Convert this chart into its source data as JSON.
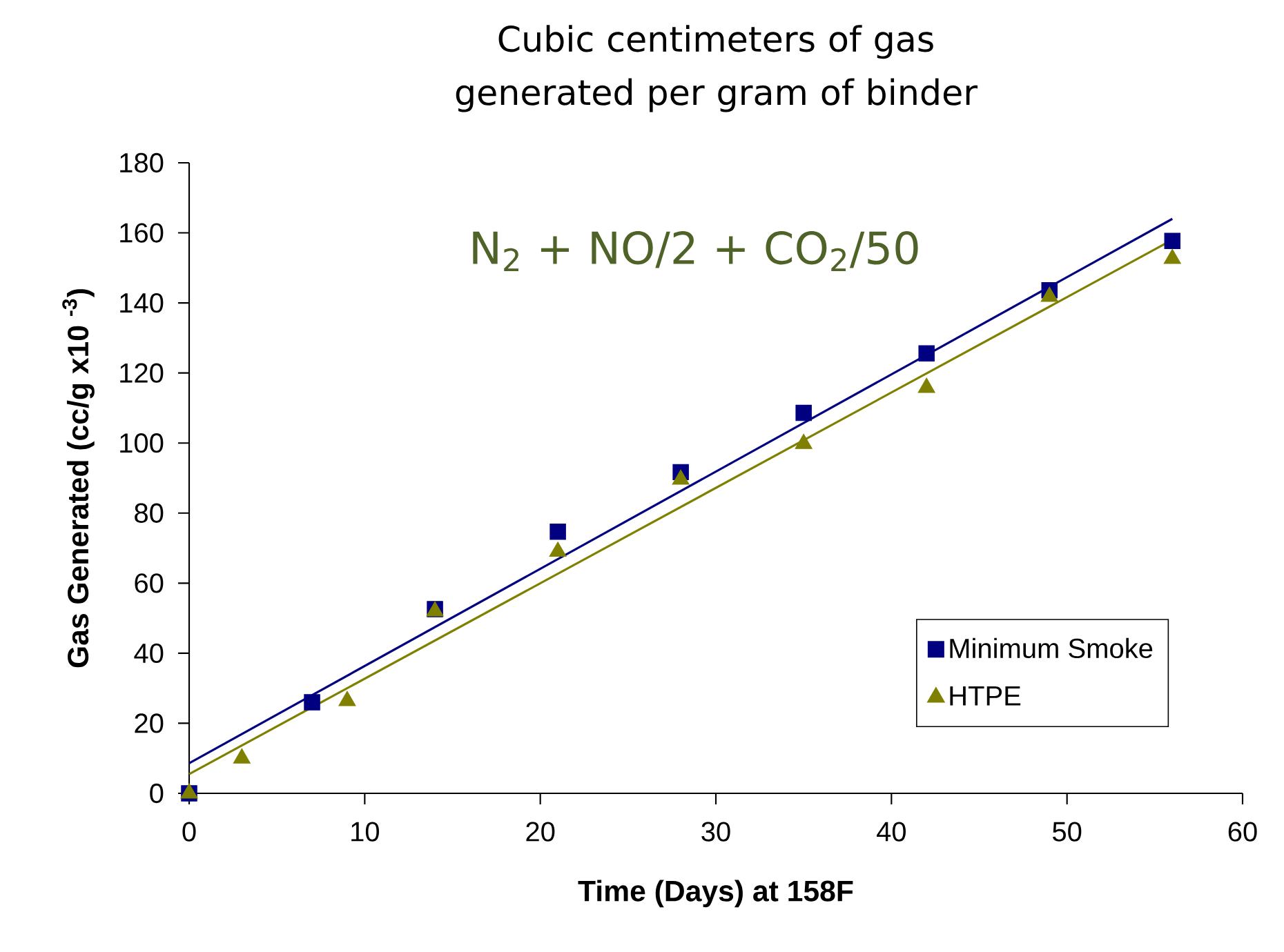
{
  "chart_data": {
    "type": "scatter",
    "title": "Cubic centimeters of gas generated per gram of binder",
    "xlabel": "Time (Days) at 158F",
    "ylabel": "Gas Generated (cc/g x10 $^{-3}$)",
    "annotations": [
      "N$_{2}$ + NO/2 + CO$_{2}$/50"
    ],
    "xlim": [
      0,
      60
    ],
    "ylim": [
      0,
      180
    ],
    "xticks": [
      0,
      10,
      20,
      30,
      40,
      50,
      60
    ],
    "yticks": [
      0,
      20,
      40,
      60,
      80,
      100,
      120,
      140,
      160,
      180
    ],
    "legend": "bottom right",
    "series": [
      {
        "name": "Minimum Smoke",
        "color": "#000080",
        "marker": "square",
        "x": [
          0,
          7,
          14,
          21,
          28,
          35,
          42,
          49,
          56
        ],
        "values": [
          0,
          26,
          52.6,
          74.7,
          91.7,
          108.6,
          125.6,
          143.6,
          157.7
        ]
      },
      {
        "name": "HTPE",
        "color": "#808000",
        "marker": "triangle",
        "x": [
          0,
          3,
          9,
          14,
          21,
          28,
          35,
          42,
          49,
          56
        ],
        "values": [
          0,
          10,
          26.4,
          52,
          69,
          89.6,
          99.8,
          115.8,
          141.8,
          152.6
        ]
      },
      {
        "type": "line",
        "color": "#000080",
        "marker": "none",
        "x": [
          0,
          56
        ],
        "values": [
          8.6,
          164
        ]
      },
      {
        "type": "line",
        "color": "#808000",
        "marker": "none",
        "x": [
          0,
          56
        ],
        "values": [
          5.5,
          158
        ]
      }
    ]
  }
}
